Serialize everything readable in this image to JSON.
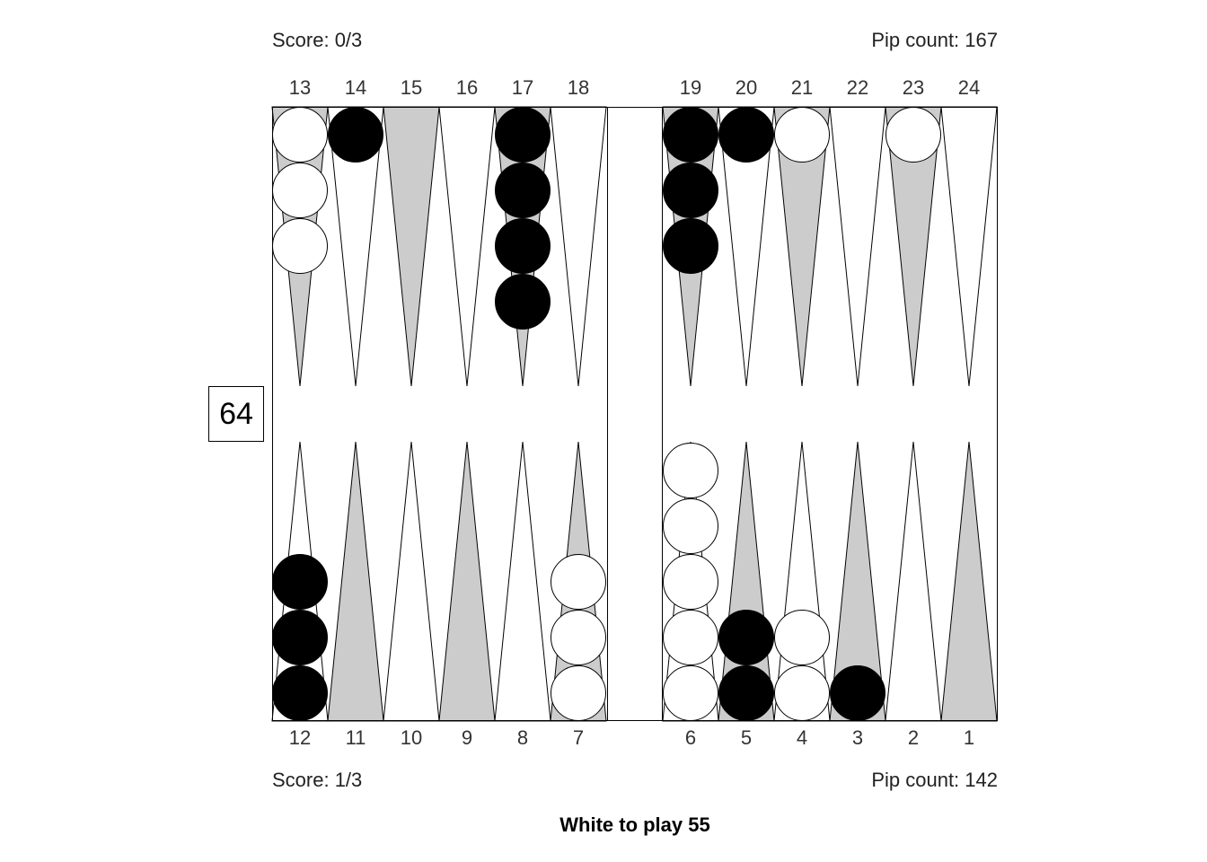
{
  "top": {
    "score": "Score: 0/3",
    "pip_count": "Pip count: 167"
  },
  "bottom": {
    "score": "Score: 1/3",
    "pip_count": "Pip count: 142"
  },
  "status": "White to play 55",
  "cube_value": "64",
  "colors": {
    "shaded_point": "#cccccc",
    "plain_point": "#ffffff",
    "white_checker": "#ffffff",
    "black_checker": "#000000",
    "outline": "#000000"
  },
  "top_point_labels": [
    "13",
    "14",
    "15",
    "16",
    "17",
    "18",
    "19",
    "20",
    "21",
    "22",
    "23",
    "24"
  ],
  "bottom_point_labels": [
    "12",
    "11",
    "10",
    "9",
    "8",
    "7",
    "6",
    "5",
    "4",
    "3",
    "2",
    "1"
  ],
  "top_shading": [
    "gray",
    "white",
    "gray",
    "white",
    "gray",
    "white",
    "gray",
    "white",
    "gray",
    "white",
    "gray",
    "white"
  ],
  "bottom_shading": [
    "white",
    "gray",
    "white",
    "gray",
    "white",
    "gray",
    "white",
    "gray",
    "white",
    "gray",
    "white",
    "gray"
  ],
  "checkers": [
    {
      "point": "13",
      "color": "white",
      "count": 3
    },
    {
      "point": "14",
      "color": "black",
      "count": 1
    },
    {
      "point": "17",
      "color": "black",
      "count": 4
    },
    {
      "point": "19",
      "color": "black",
      "count": 3
    },
    {
      "point": "20",
      "color": "black",
      "count": 1
    },
    {
      "point": "21",
      "color": "white",
      "count": 1
    },
    {
      "point": "23",
      "color": "white",
      "count": 1
    },
    {
      "point": "12",
      "color": "black",
      "count": 3
    },
    {
      "point": "7",
      "color": "white",
      "count": 3
    },
    {
      "point": "6",
      "color": "white",
      "count": 5
    },
    {
      "point": "5",
      "color": "black",
      "count": 2
    },
    {
      "point": "4",
      "color": "white",
      "count": 2
    },
    {
      "point": "3",
      "color": "black",
      "count": 1
    }
  ]
}
